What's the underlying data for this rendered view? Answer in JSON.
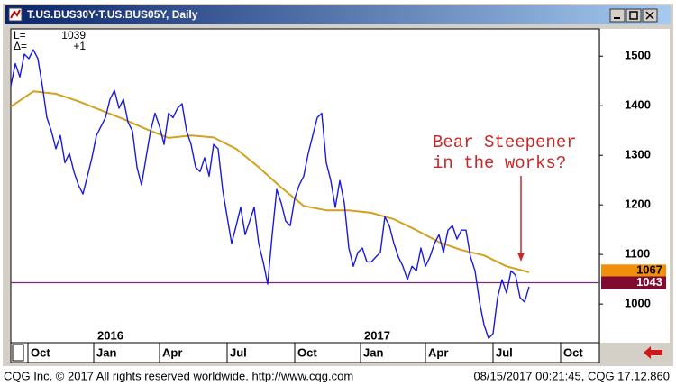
{
  "chart_data": {
    "type": "line",
    "title": "T.US.BUS30Y-T.US.BUS05Y, Daily",
    "info": [
      {
        "label": "L=",
        "value": "1039"
      },
      {
        "label": "Δ=",
        "value": "+1"
      }
    ],
    "series": [
      {
        "name": "T.US.BUS30Y-T.US.BUS05Y",
        "color": "#1a1adf",
        "values": [
          1440,
          1485,
          1458,
          1504,
          1495,
          1513,
          1495,
          1440,
          1376,
          1349,
          1313,
          1340,
          1285,
          1304,
          1267,
          1240,
          1222,
          1258,
          1295,
          1340,
          1358,
          1376,
          1413,
          1431,
          1395,
          1413,
          1367,
          1349,
          1276,
          1240,
          1295,
          1349,
          1385,
          1358,
          1322,
          1385,
          1376,
          1395,
          1404,
          1349,
          1322,
          1276,
          1267,
          1295,
          1258,
          1322,
          1313,
          1231,
          1176,
          1122,
          1158,
          1195,
          1140,
          1167,
          1195,
          1122,
          1085,
          1040,
          1140,
          1231,
          1204,
          1167,
          1158,
          1213,
          1240,
          1258,
          1304,
          1340,
          1376,
          1385,
          1285,
          1249,
          1195,
          1249,
          1204,
          1113,
          1076,
          1104,
          1113,
          1085,
          1085,
          1095,
          1104,
          1176,
          1158,
          1122,
          1095,
          1076,
          1049,
          1076,
          1067,
          1113,
          1076,
          1095,
          1122,
          1140,
          1104,
          1149,
          1158,
          1131,
          1149,
          1149,
          1095,
          1067,
          1004,
          958,
          931,
          940,
          1013,
          1049,
          1022,
          1067,
          1058,
          1013,
          1004,
          1035
        ]
      },
      {
        "name": "Moving Average",
        "color": "#d4a020",
        "x": [
          0,
          5,
          10,
          15,
          20,
          25,
          30,
          35,
          40,
          45,
          50,
          55,
          60,
          65,
          70,
          75,
          80,
          85,
          90,
          95,
          100,
          105,
          110,
          115
        ],
        "values": [
          1398,
          1429,
          1424,
          1409,
          1391,
          1373,
          1353,
          1335,
          1340,
          1336,
          1313,
          1276,
          1235,
          1198,
          1189,
          1189,
          1184,
          1171,
          1149,
          1125,
          1109,
          1098,
          1076,
          1064
        ]
      }
    ],
    "markers": [
      {
        "value": 1067,
        "color": "#f0900a",
        "text_color": "#000000"
      },
      {
        "value": 1043,
        "color": "#800a30",
        "text_color": "#ffffff",
        "line_color": "#7a2a7a"
      }
    ],
    "xlim": [
      0,
      130.6
    ],
    "xticks": [
      {
        "value": 3.8,
        "label": "Oct"
      },
      {
        "value": 18.4,
        "label": "Jan"
      },
      {
        "value": 33,
        "label": "Apr"
      },
      {
        "value": 48,
        "label": "Jul"
      },
      {
        "value": 63,
        "label": "Oct"
      },
      {
        "value": 77.6,
        "label": "Jan"
      },
      {
        "value": 92,
        "label": "Apr"
      },
      {
        "value": 107,
        "label": "Jul"
      },
      {
        "value": 122,
        "label": "Oct"
      }
    ],
    "year_labels": [
      {
        "value": 19.2,
        "label": "2016"
      },
      {
        "value": 78.4,
        "label": "2017"
      }
    ],
    "ylim": [
      922,
      1555
    ],
    "yticks": [
      1000,
      1100,
      1200,
      1300,
      1400,
      1500
    ],
    "annotation": {
      "lines": [
        "Bear Steepener",
        "in the works?"
      ],
      "color": "#c8282a"
    },
    "footer_left": "CQG Inc. © 2017 All rights reserved worldwide. http://www.cqg.com",
    "footer_right": "08/15/2017 00:21:45, CQG 17.12.860"
  }
}
